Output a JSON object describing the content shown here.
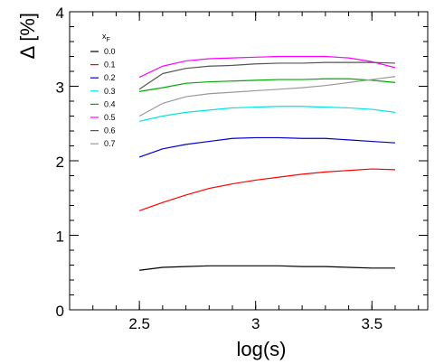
{
  "chart_data": {
    "type": "line",
    "title": "",
    "xlabel": "log(s)",
    "ylabel": "Δ [%]",
    "xlim": [
      2.2,
      3.74
    ],
    "ylim": [
      0,
      4
    ],
    "x_ticks": [
      {
        "value": 2.5,
        "label": "2.5"
      },
      {
        "value": 3.0,
        "label": "3"
      },
      {
        "value": 3.5,
        "label": "3.5"
      }
    ],
    "y_ticks": [
      {
        "value": 0,
        "label": "0"
      },
      {
        "value": 1,
        "label": "1"
      },
      {
        "value": 2,
        "label": "2"
      },
      {
        "value": 3,
        "label": "3"
      },
      {
        "value": 4,
        "label": "4"
      }
    ],
    "x_minor_step": 0.1,
    "y_minor_step": 0.2,
    "grid": false,
    "legend": {
      "title": "x",
      "title_subscript": "F",
      "placement": "top-left"
    },
    "x": [
      2.5,
      2.6,
      2.7,
      2.8,
      2.9,
      3.0,
      3.1,
      3.2,
      3.3,
      3.4,
      3.5,
      3.6
    ],
    "series": [
      {
        "name": "0.0",
        "color": "#000000",
        "values": [
          0.53,
          0.57,
          0.58,
          0.59,
          0.59,
          0.59,
          0.59,
          0.58,
          0.58,
          0.57,
          0.56,
          0.56
        ]
      },
      {
        "name": "0.1",
        "color": "#ff0000",
        "values": [
          1.33,
          1.44,
          1.54,
          1.63,
          1.69,
          1.74,
          1.78,
          1.82,
          1.85,
          1.87,
          1.89,
          1.88
        ]
      },
      {
        "name": "0.2",
        "color": "#0000cc",
        "values": [
          2.05,
          2.16,
          2.22,
          2.26,
          2.3,
          2.31,
          2.31,
          2.3,
          2.3,
          2.28,
          2.26,
          2.24
        ]
      },
      {
        "name": "0.3",
        "color": "#00e5e5",
        "values": [
          2.53,
          2.6,
          2.65,
          2.68,
          2.71,
          2.72,
          2.73,
          2.73,
          2.72,
          2.71,
          2.69,
          2.65
        ]
      },
      {
        "name": "0.4",
        "color": "#00aa00",
        "values": [
          2.93,
          2.98,
          3.04,
          3.06,
          3.07,
          3.08,
          3.09,
          3.09,
          3.1,
          3.1,
          3.08,
          3.05
        ]
      },
      {
        "name": "0.5",
        "color": "#ff00ff",
        "values": [
          3.12,
          3.27,
          3.34,
          3.37,
          3.38,
          3.39,
          3.4,
          3.4,
          3.4,
          3.38,
          3.33,
          3.25
        ]
      },
      {
        "name": "0.6",
        "color": "#555555",
        "values": [
          2.96,
          3.17,
          3.24,
          3.27,
          3.28,
          3.3,
          3.31,
          3.31,
          3.32,
          3.32,
          3.32,
          3.31
        ]
      },
      {
        "name": "0.7",
        "color": "#999999",
        "values": [
          2.6,
          2.77,
          2.86,
          2.9,
          2.92,
          2.94,
          2.96,
          2.98,
          3.01,
          3.05,
          3.09,
          3.13
        ]
      }
    ]
  }
}
